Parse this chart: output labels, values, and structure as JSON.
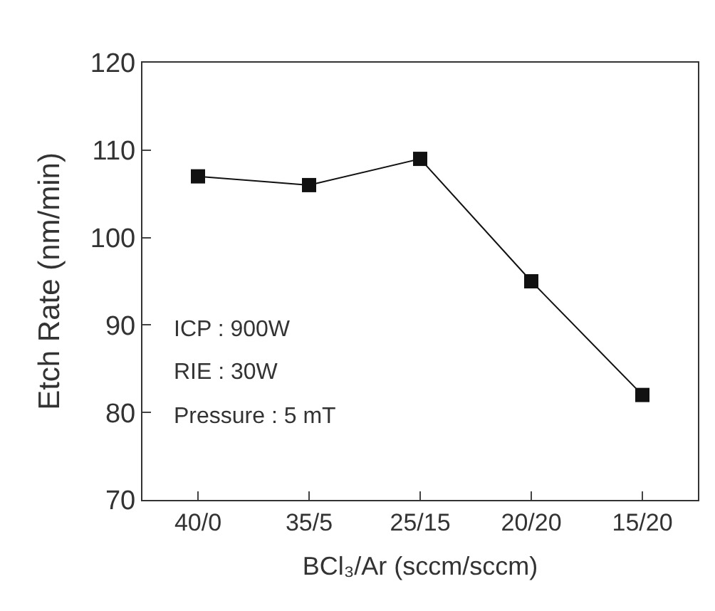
{
  "chart_data": {
    "type": "line",
    "categories": [
      "40/0",
      "35/5",
      "25/15",
      "20/20",
      "15/20"
    ],
    "series": [
      {
        "color": "#111111",
        "values": [
          107,
          106,
          109,
          95,
          82
        ]
      }
    ],
    "xlabel": "BCl₃/Ar (sccm/sccm)",
    "ylabel": "Etch Rate (nm/min)",
    "ylim": [
      70,
      120
    ],
    "yticks": [
      70,
      80,
      90,
      100,
      110,
      120
    ],
    "annotations": [
      "ICP : 900W",
      "RIE : 30W",
      "Pressure : 5 mT"
    ],
    "marker": "square",
    "line_style": "solid"
  }
}
